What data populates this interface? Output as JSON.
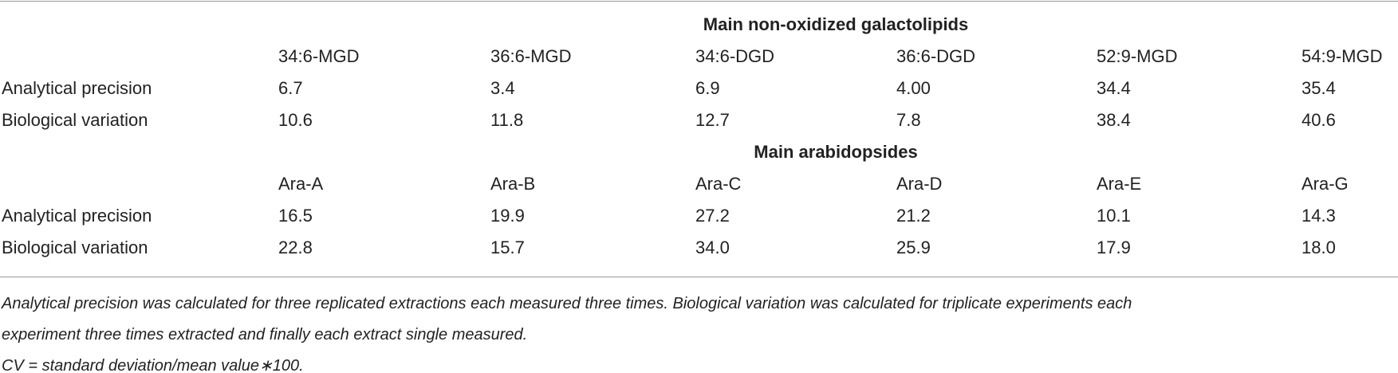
{
  "sections": [
    {
      "title": "Main non-oxidized galactolipids",
      "columns": [
        "34:6-MGD",
        "36:6-MGD",
        "34:6-DGD",
        "36:6-DGD",
        "52:9-MGD",
        "54:9-MGD"
      ],
      "rows": [
        {
          "label": "Analytical precision",
          "values": [
            "6.7",
            "3.4",
            "6.9",
            "4.00",
            "34.4",
            "35.4"
          ]
        },
        {
          "label": "Biological variation",
          "values": [
            "10.6",
            "11.8",
            "12.7",
            "7.8",
            "38.4",
            "40.6"
          ]
        }
      ]
    },
    {
      "title": "Main arabidopsides",
      "columns": [
        "Ara-A",
        "Ara-B",
        "Ara-C",
        "Ara-D",
        "Ara-E",
        "Ara-G"
      ],
      "rows": [
        {
          "label": "Analytical precision",
          "values": [
            "16.5",
            "19.9",
            "27.2",
            "21.2",
            "10.1",
            "14.3"
          ]
        },
        {
          "label": "Biological variation",
          "values": [
            "22.8",
            "15.7",
            "34.0",
            "25.9",
            "17.9",
            "18.0"
          ]
        }
      ]
    }
  ],
  "footnotes": [
    "Analytical precision was calculated for three replicated extractions each measured three times. Biological variation was calculated for triplicate experiments each",
    "experiment three times extracted and finally each extract single measured.",
    "CV = standard deviation/mean value∗100."
  ]
}
